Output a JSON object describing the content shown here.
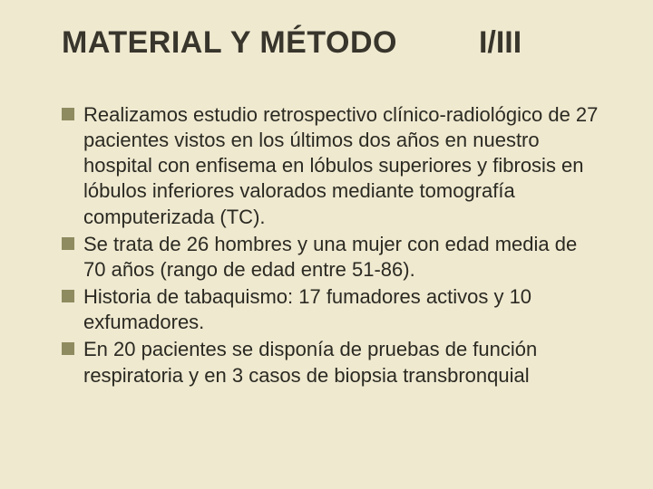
{
  "colors": {
    "background": "#efe9d0",
    "title": "#38352c",
    "bullet": "#8f8b60",
    "body_text": "#2b2a22"
  },
  "title": {
    "main": "MATERIAL Y MÉTODO",
    "num": "I/III"
  },
  "title_fontsize": 34,
  "body_fontsize": 22,
  "bullets": [
    "Realizamos estudio retrospectivo clínico-radiológico de 27 pacientes  vistos en los últimos dos años en nuestro hospital con enfisema en lóbulos superiores y fibrosis en lóbulos inferiores valorados mediante tomografía computerizada (TC).",
    "Se trata de 26 hombres y una mujer con edad media de 70 años  (rango de edad entre 51-86).",
    "Historia de tabaquismo: 17 fumadores activos y 10 exfumadores.",
    "En 20 pacientes se disponía de pruebas de función respiratoria y en 3 casos de biopsia transbronquial"
  ]
}
